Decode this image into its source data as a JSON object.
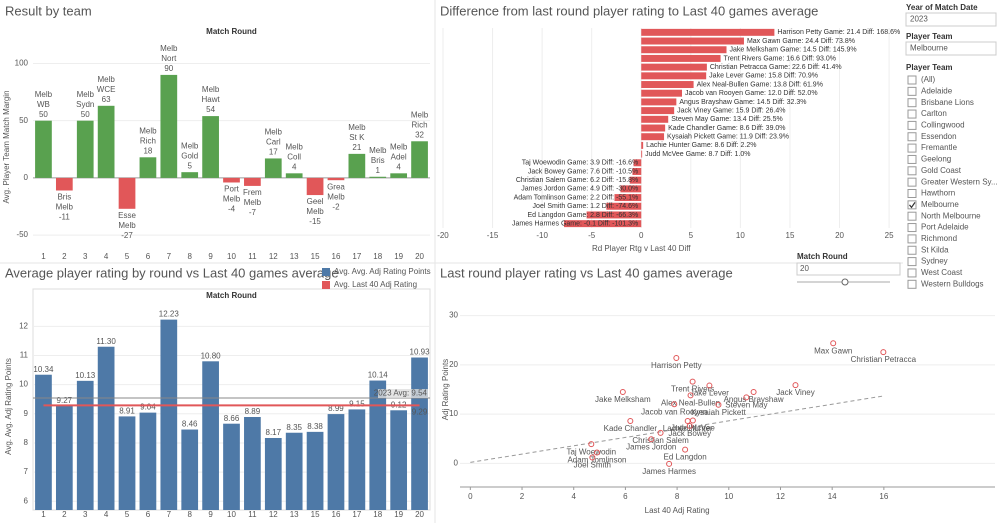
{
  "chart_data": [
    {
      "type": "bar",
      "title": "Result by team",
      "header": "Match Round",
      "ylabel": "Avg. Player Team Match Margin",
      "categories": [
        "1",
        "2",
        "3",
        "4",
        "5",
        "6",
        "7",
        "8",
        "9",
        "10",
        "11",
        "12",
        "13",
        "15",
        "16",
        "17",
        "18",
        "19",
        "20"
      ],
      "values": [
        50,
        -11,
        50,
        63,
        -27,
        18,
        90,
        5,
        54,
        -4,
        -7,
        17,
        4,
        -15,
        -2,
        21,
        1,
        4,
        32
      ],
      "bar_labels": [
        [
          "Melb",
          "WB"
        ],
        [
          "Bris",
          "Melb"
        ],
        [
          "Melb",
          "Sydn"
        ],
        [
          "Melb",
          "WCE"
        ],
        [
          "Esse",
          "Melb"
        ],
        [
          "Melb",
          "Rich"
        ],
        [
          "Melb",
          "Nort"
        ],
        [
          "Melb",
          "Gold"
        ],
        [
          "Melb",
          "Hawt"
        ],
        [
          "Port",
          "Melb"
        ],
        [
          "Frem",
          "Melb"
        ],
        [
          "Melb",
          "Carl"
        ],
        [
          "Melb",
          "Coll"
        ],
        [
          "Geel",
          "Melb"
        ],
        [
          "Grea",
          "Melb"
        ],
        [
          "Melb",
          "St K"
        ],
        [
          "Melb",
          "Bris"
        ],
        [
          "Melb",
          "Adel"
        ],
        [
          "Melb",
          "Rich"
        ]
      ],
      "positive_color": "#59a14f",
      "negative_color": "#e15759",
      "ylim": [
        -63,
        117
      ],
      "yticks": [
        -50,
        0,
        50,
        100
      ],
      "grid": true
    },
    {
      "type": "hbar",
      "title": "Difference from last round player rating to Last 40 games average",
      "xlabel": "Rd Player Rtg v Last 40 Diff",
      "categories": [
        "Harrison Petty Game: 21.4 Diff: 168.6%",
        "Max Gawn Game: 24.4 Diff: 73.8%",
        "Jake Melksham Game: 14.5 Diff: 145.9%",
        "Trent Rivers Game: 16.6 Diff: 93.0%",
        "Christian Petracca Game: 22.6 Diff: 41.4%",
        "Jake Lever Game: 15.8 Diff: 70.9%",
        "Alex Neal-Bullen Game: 13.8 Diff: 61.9%",
        "Jacob van Rooyen Game: 12.0 Diff: 52.0%",
        "Angus Brayshaw Game: 14.5 Diff: 32.3%",
        "Jack Viney Game: 15.9 Diff: 26.4%",
        "Steven May Game: 13.4 Diff: 25.5%",
        "Kade Chandler Game: 8.6 Diff: 39.0%",
        "Kysaiah Pickett Game: 11.9 Diff: 23.9%",
        "Lachie Hunter Game: 8.6 Diff: 2.2%",
        "Judd McVee Game: 8.7 Diff: 1.0%",
        "Taj Woewodin Game: 3.9 Diff: -16.6%",
        "Jack Bowey Game: 7.6 Diff: -10.5%",
        "Christian Salem Game: 6.2 Diff: -15.8%",
        "James Jordon Game: 4.9 Diff: -30.0%",
        "Adam Tomlinson Game: 2.2 Diff: -55.1%",
        "Joel Smith Game: 1.2 Diff: -74.6%",
        "Ed Langdon Game: 2.8 Diff: -66.3%",
        "James Harmes Game: -0.1 Diff: -101.3%"
      ],
      "values": [
        13.43,
        10.36,
        8.6,
        8.0,
        6.62,
        6.55,
        5.28,
        4.11,
        3.54,
        3.32,
        2.72,
        2.41,
        2.3,
        0.19,
        0.09,
        -0.78,
        -0.89,
        -1.16,
        -2.1,
        -2.7,
        -3.52,
        -5.51,
        -7.79
      ],
      "color": "#e15759",
      "xlim": [
        -20.3,
        26.1
      ],
      "xticks": [
        -20,
        -15,
        -10,
        -5,
        0,
        5,
        10,
        15,
        20,
        25
      ],
      "grid": true
    },
    {
      "type": "bar_line",
      "title": "Average player rating by round vs Last 40 games average",
      "header": "Match Round",
      "ylabel": "Avg. Avg. Adj Rating Points",
      "categories": [
        "1",
        "2",
        "3",
        "4",
        "5",
        "6",
        "7",
        "8",
        "9",
        "10",
        "11",
        "12",
        "13",
        "15",
        "16",
        "17",
        "18",
        "19",
        "20"
      ],
      "series": [
        {
          "name": "Avg. Avg. Adj Rating Points",
          "color": "#4e79a7",
          "values": [
            10.34,
            9.27,
            10.13,
            11.3,
            8.91,
            9.04,
            12.23,
            8.46,
            10.8,
            8.66,
            8.89,
            8.17,
            8.35,
            8.38,
            8.99,
            9.15,
            10.14,
            9.12,
            10.93
          ],
          "value_labels": [
            "10.34",
            "9.27",
            "10.13",
            "11.30",
            "8.91",
            "9.04",
            "12.23",
            "8.46",
            "10.80",
            "8.66",
            "8.89",
            "8.17",
            "8.35",
            "8.38",
            "8.99",
            "9.15",
            "10.14",
            "9.12",
            "10.93"
          ]
        },
        {
          "name": "Avg. Last 40 Adj Rating",
          "color": "#e15759",
          "values": [
            9.29,
            9.29,
            9.29,
            9.29,
            9.29,
            9.29,
            9.29,
            9.29,
            9.29,
            9.29,
            9.29,
            9.29,
            9.29,
            9.29,
            9.29,
            9.29,
            9.29,
            9.29,
            9.29
          ]
        }
      ],
      "reference_line": {
        "label": "2023 Avg: 9.54",
        "value": 9.54
      },
      "ylim": [
        5.7,
        12.8
      ],
      "yticks": [
        6,
        7,
        8,
        9,
        10,
        11,
        12
      ],
      "grid": true
    },
    {
      "type": "scatter",
      "title": "Last round player rating vs Last 40 games average",
      "xlabel": "Last 40 Adj Rating",
      "ylabel": "Adj Rating Points",
      "names": [
        "Harrison Petty",
        "Max Gawn",
        "Jake Melksham",
        "Trent Rivers",
        "Christian Petracca",
        "Jake Lever",
        "Alex Neal-Bullen",
        "Jacob van Rooyen",
        "Angus Brayshaw",
        "Jack Viney",
        "Steven May",
        "Kade Chandler",
        "Kysaiah Pickett",
        "Lachie Hunter",
        "Judd McVee",
        "Taj Woewodin",
        "Jack Bowey",
        "Christian Salem",
        "James Jordon",
        "Adam Tomlinson",
        "Joel Smith",
        "Ed Langdon",
        "James Harmes"
      ],
      "x": [
        7.97,
        14.04,
        5.9,
        8.6,
        15.98,
        9.25,
        8.52,
        7.89,
        10.96,
        12.58,
        10.68,
        6.19,
        9.6,
        8.41,
        8.61,
        4.68,
        8.49,
        7.36,
        7.0,
        4.9,
        4.72,
        8.31,
        7.69
      ],
      "y": [
        21.4,
        24.4,
        14.5,
        16.6,
        22.6,
        15.8,
        13.8,
        12.0,
        14.5,
        15.9,
        13.4,
        8.6,
        11.9,
        8.6,
        8.7,
        3.9,
        7.6,
        6.2,
        4.9,
        2.2,
        1.2,
        2.8,
        -0.1
      ],
      "color": "#e15759",
      "trendline": {
        "x": [
          0,
          16
        ],
        "y": [
          0.2,
          13.7
        ]
      },
      "xlim": [
        -0.4,
        20.3
      ],
      "xticks": [
        0,
        2,
        4,
        6,
        8,
        10,
        12,
        14,
        16
      ],
      "ylim": [
        -4.8,
        34.8
      ],
      "yticks": [
        0,
        10,
        20,
        30
      ],
      "grid": true
    }
  ],
  "filters": {
    "year": {
      "label": "Year of Match Date",
      "value": "2023"
    },
    "team": {
      "label": "Player Team",
      "value": "Melbourne"
    },
    "team_list": {
      "label": "Player Team",
      "items": [
        {
          "label": "(All)",
          "checked": false
        },
        {
          "label": "Adelaide",
          "checked": false
        },
        {
          "label": "Brisbane Lions",
          "checked": false
        },
        {
          "label": "Carlton",
          "checked": false
        },
        {
          "label": "Collingwood",
          "checked": false
        },
        {
          "label": "Essendon",
          "checked": false
        },
        {
          "label": "Fremantle",
          "checked": false
        },
        {
          "label": "Geelong",
          "checked": false
        },
        {
          "label": "Gold Coast",
          "checked": false
        },
        {
          "label": "Greater Western Sy...",
          "checked": false
        },
        {
          "label": "Hawthorn",
          "checked": false
        },
        {
          "label": "Melbourne",
          "checked": true
        },
        {
          "label": "North Melbourne",
          "checked": false
        },
        {
          "label": "Port Adelaide",
          "checked": false
        },
        {
          "label": "Richmond",
          "checked": false
        },
        {
          "label": "St Kilda",
          "checked": false
        },
        {
          "label": "Sydney",
          "checked": false
        },
        {
          "label": "West Coast",
          "checked": false
        },
        {
          "label": "Western Bulldogs",
          "checked": false
        }
      ]
    },
    "match_round": {
      "label": "Match Round",
      "value": 20
    }
  }
}
